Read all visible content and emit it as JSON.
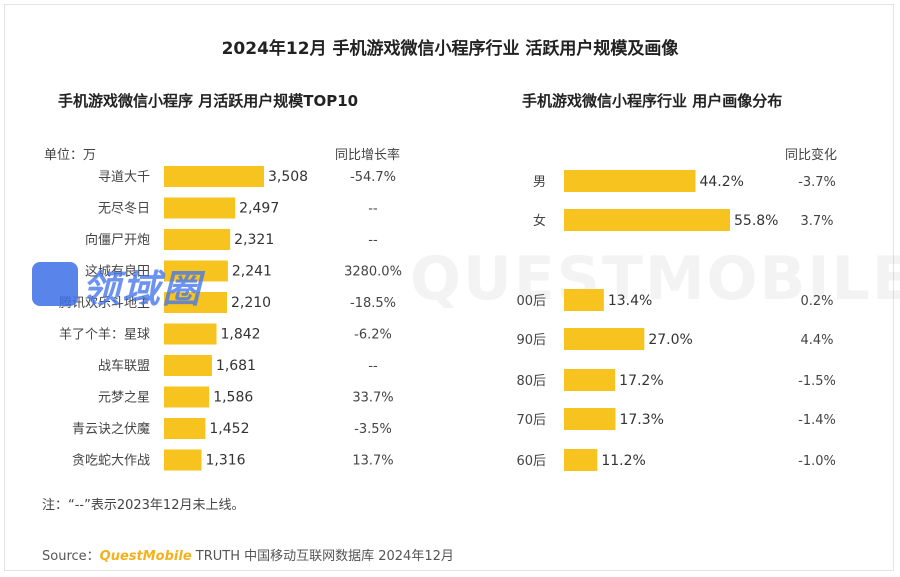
{
  "main_title": "2024年12月 手机游戏微信小程序行业 活跃用户规模及画像",
  "left_title": "手机游戏微信小程序 月活跃用户规模TOP10",
  "right_title": "手机游戏微信小程序行业 用户画像分布",
  "unit_label": "单位：万",
  "left_change_header": "同比增长率",
  "right_change_header": "同比变化",
  "note": "注：“--”表示2023年12月未上线。",
  "source_prefix": "Source：",
  "source_brand": "QuestMobile",
  "source_suffix": " TRUTH 中国移动互联网数据库 2024年12月",
  "watermark": "QUESTMOBILE",
  "logo_text": "领域圈",
  "bar_color": "#f7c31f",
  "chart_data": [
    {
      "type": "bar",
      "title": "手机游戏微信小程序 月活跃用户规模TOP10",
      "unit": "万",
      "categories": [
        "寻道大千",
        "无尽冬日",
        "向僵尸开炮",
        "这城有良田",
        "腾讯欢乐斗地主",
        "羊了个羊：星球",
        "战车联盟",
        "元梦之星",
        "青云诀之伏魔",
        "贪吃蛇大作战"
      ],
      "values": [
        3508,
        2497,
        2321,
        2241,
        2210,
        1842,
        1681,
        1586,
        1452,
        1316
      ],
      "value_labels": [
        "3,508",
        "2,497",
        "2,321",
        "2,241",
        "2,210",
        "1,842",
        "1,681",
        "1,586",
        "1,452",
        "1,316"
      ],
      "yoy": [
        "-54.7%",
        "--",
        "--",
        "3280.0%",
        "-18.5%",
        "-6.2%",
        "--",
        "33.7%",
        "-3.5%",
        "13.7%"
      ]
    },
    {
      "type": "bar",
      "title": "手机游戏微信小程序行业 用户画像分布",
      "groups": [
        {
          "categories": [
            "男",
            "女"
          ],
          "values": [
            44.2,
            55.8
          ],
          "value_labels": [
            "44.2%",
            "55.8%"
          ],
          "change": [
            "-3.7%",
            "3.7%"
          ]
        },
        {
          "categories": [
            "00后",
            "90后",
            "80后",
            "70后",
            "60后"
          ],
          "values": [
            13.4,
            27.0,
            17.2,
            17.3,
            11.2
          ],
          "value_labels": [
            "13.4%",
            "27.0%",
            "17.2%",
            "17.3%",
            "11.2%"
          ],
          "change": [
            "0.2%",
            "4.4%",
            "-1.5%",
            "-1.4%",
            "-1.0%"
          ]
        }
      ]
    }
  ]
}
